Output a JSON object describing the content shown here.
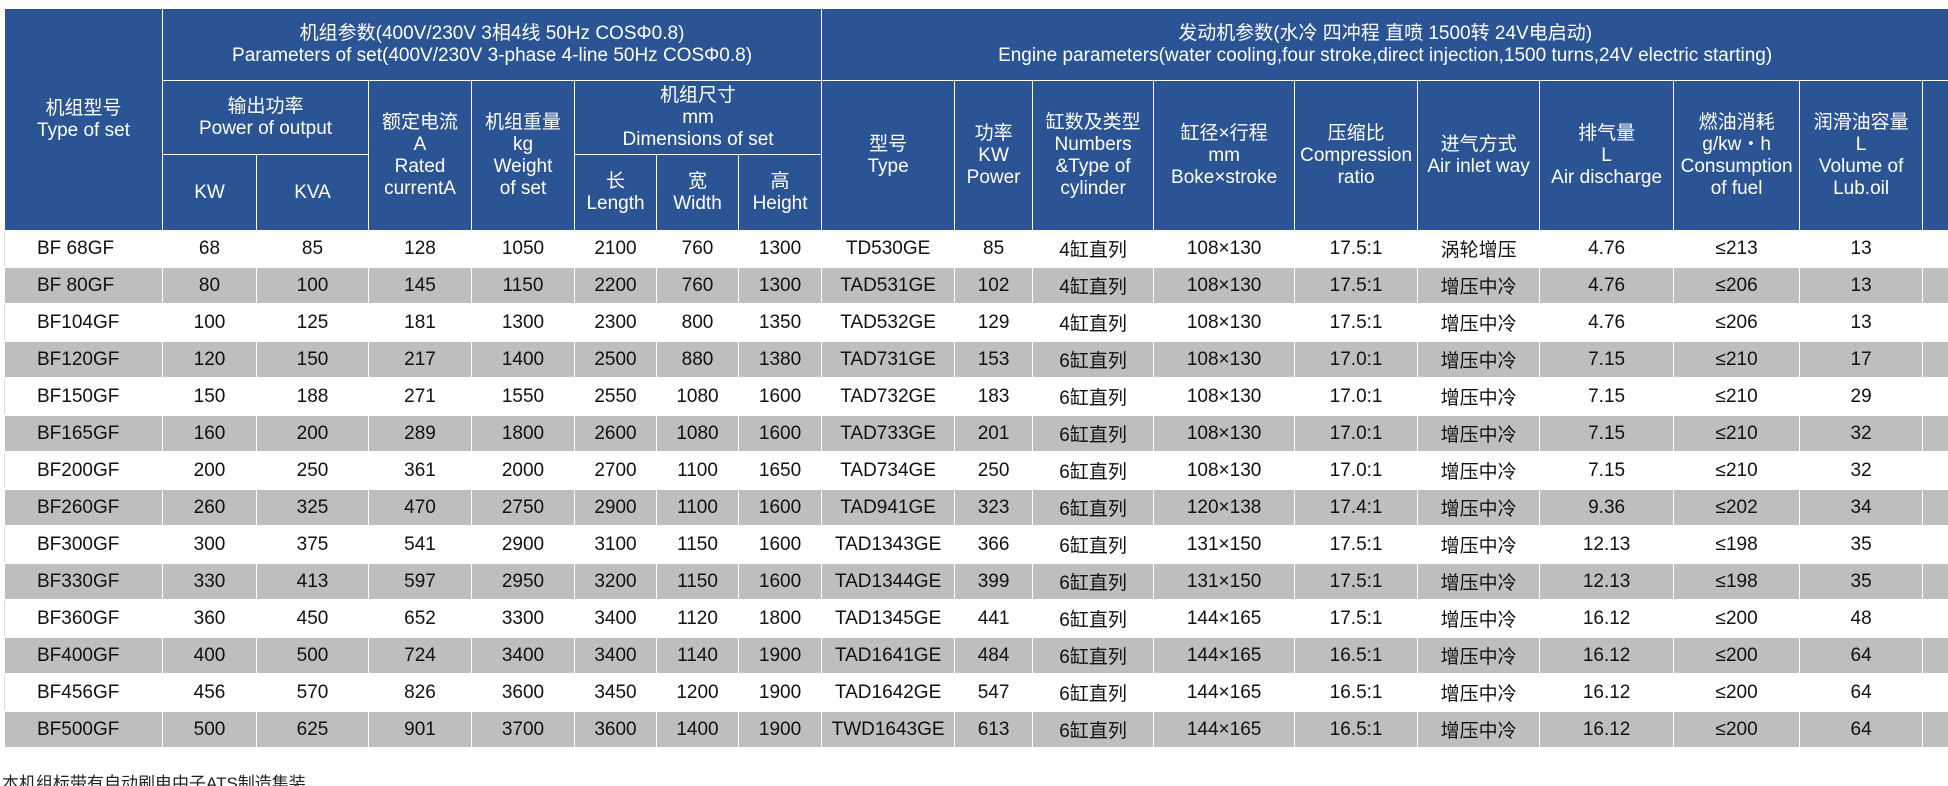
{
  "header": {
    "model": {
      "cn": "机组型号",
      "en": "Type of set"
    },
    "set_params": {
      "cn": "机组参数(400V/230V 3相4线 50Hz COSΦ0.8)",
      "en": "Parameters of set(400V/230V 3-phase 4-line 50Hz COSΦ0.8)"
    },
    "engine_params": {
      "cn": "发动机参数(水冷 四冲程 直喷 1500转 24V电启动)",
      "en": "Engine parameters(water cooling,four stroke,direct injection,1500 turns,24V electric starting)"
    },
    "output_power": {
      "cn": "输出功率",
      "en": "Power of output"
    },
    "kw": "KW",
    "kva": "KVA",
    "rated_current": {
      "cn": "额定电流",
      "unit": "A",
      "en1": "Rated",
      "en2": "currentA"
    },
    "weight": {
      "cn": "机组重量",
      "unit": "kg",
      "en1": "Weight",
      "en2": "of set"
    },
    "dimensions": {
      "cn": "机组尺寸",
      "unit": "mm",
      "en": "Dimensions of set"
    },
    "length": {
      "cn": "长",
      "en": "Length"
    },
    "width": {
      "cn": "宽",
      "en": "Width"
    },
    "height": {
      "cn": "高",
      "en": "Height"
    },
    "engine_type": {
      "cn": "型号",
      "en": "Type"
    },
    "power": {
      "cn": "功率",
      "unit": "KW",
      "en": "Power"
    },
    "cylinders": {
      "cn": "缸数及类型",
      "en1": "Numbers",
      "en2": "&Type of",
      "en3": "cylinder"
    },
    "bore": {
      "cn": "缸径×行程",
      "unit": "mm",
      "en": "Boke×stroke"
    },
    "compression": {
      "cn": "压缩比",
      "en1": "Compression",
      "en2": "ratio"
    },
    "air_inlet": {
      "cn": "进气方式",
      "en": "Air inlet way"
    },
    "discharge": {
      "cn": "排气量",
      "unit": "L",
      "en": "Air discharge"
    },
    "fuel": {
      "cn": "燃油消耗",
      "unit": "g/kw・h",
      "en1": "Consumption",
      "en2": "of fuel"
    },
    "oil": {
      "cn": "润滑油容量",
      "unit": "L",
      "en1": "Volume of",
      "en2": "Lub.oil"
    }
  },
  "rows": [
    [
      "BF 68GF",
      "68",
      "85",
      "128",
      "1050",
      "2100",
      "760",
      "1300",
      "TD530GE",
      "85",
      "4缸直列",
      "108×130",
      "17.5:1",
      "涡轮增压",
      "4.76",
      "≤213",
      "13"
    ],
    [
      "BF 80GF",
      "80",
      "100",
      "145",
      "1150",
      "2200",
      "760",
      "1300",
      "TAD531GE",
      "102",
      "4缸直列",
      "108×130",
      "17.5:1",
      "增压中冷",
      "4.76",
      "≤206",
      "13"
    ],
    [
      "BF104GF",
      "100",
      "125",
      "181",
      "1300",
      "2300",
      "800",
      "1350",
      "TAD532GE",
      "129",
      "4缸直列",
      "108×130",
      "17.5:1",
      "增压中冷",
      "4.76",
      "≤206",
      "13"
    ],
    [
      "BF120GF",
      "120",
      "150",
      "217",
      "1400",
      "2500",
      "880",
      "1380",
      "TAD731GE",
      "153",
      "6缸直列",
      "108×130",
      "17.0:1",
      "增压中冷",
      "7.15",
      "≤210",
      "17"
    ],
    [
      "BF150GF",
      "150",
      "188",
      "271",
      "1550",
      "2550",
      "1080",
      "1600",
      "TAD732GE",
      "183",
      "6缸直列",
      "108×130",
      "17.0:1",
      "增压中冷",
      "7.15",
      "≤210",
      "29"
    ],
    [
      "BF165GF",
      "160",
      "200",
      "289",
      "1800",
      "2600",
      "1080",
      "1600",
      "TAD733GE",
      "201",
      "6缸直列",
      "108×130",
      "17.0:1",
      "增压中冷",
      "7.15",
      "≤210",
      "32"
    ],
    [
      "BF200GF",
      "200",
      "250",
      "361",
      "2000",
      "2700",
      "1100",
      "1650",
      "TAD734GE",
      "250",
      "6缸直列",
      "108×130",
      "17.0:1",
      "增压中冷",
      "7.15",
      "≤210",
      "32"
    ],
    [
      "BF260GF",
      "260",
      "325",
      "470",
      "2750",
      "2900",
      "1100",
      "1600",
      "TAD941GE",
      "323",
      "6缸直列",
      "120×138",
      "17.4:1",
      "增压中冷",
      "9.36",
      "≤202",
      "34"
    ],
    [
      "BF300GF",
      "300",
      "375",
      "541",
      "2900",
      "3100",
      "1150",
      "1600",
      "TAD1343GE",
      "366",
      "6缸直列",
      "131×150",
      "17.5:1",
      "增压中冷",
      "12.13",
      "≤198",
      "35"
    ],
    [
      "BF330GF",
      "330",
      "413",
      "597",
      "2950",
      "3200",
      "1150",
      "1600",
      "TAD1344GE",
      "399",
      "6缸直列",
      "131×150",
      "17.5:1",
      "增压中冷",
      "12.13",
      "≤198",
      "35"
    ],
    [
      "BF360GF",
      "360",
      "450",
      "652",
      "3300",
      "3400",
      "1120",
      "1800",
      "TAD1345GE",
      "441",
      "6缸直列",
      "144×165",
      "17.5:1",
      "增压中冷",
      "16.12",
      "≤200",
      "48"
    ],
    [
      "BF400GF",
      "400",
      "500",
      "724",
      "3400",
      "3400",
      "1140",
      "1900",
      "TAD1641GE",
      "484",
      "6缸直列",
      "144×165",
      "16.5:1",
      "增压中冷",
      "16.12",
      "≤200",
      "64"
    ],
    [
      "BF456GF",
      "456",
      "570",
      "826",
      "3600",
      "3450",
      "1200",
      "1900",
      "TAD1642GE",
      "547",
      "6缸直列",
      "144×165",
      "16.5:1",
      "增压中冷",
      "16.12",
      "≤200",
      "64"
    ],
    [
      "BF500GF",
      "500",
      "625",
      "901",
      "3700",
      "3600",
      "1400",
      "1900",
      "TWD1643GE",
      "613",
      "6缸直列",
      "144×165",
      "16.5:1",
      "增压中冷",
      "16.12",
      "≤200",
      "64"
    ]
  ],
  "footnote": "本机组标带有自动刷电中子ATS制造集装"
}
